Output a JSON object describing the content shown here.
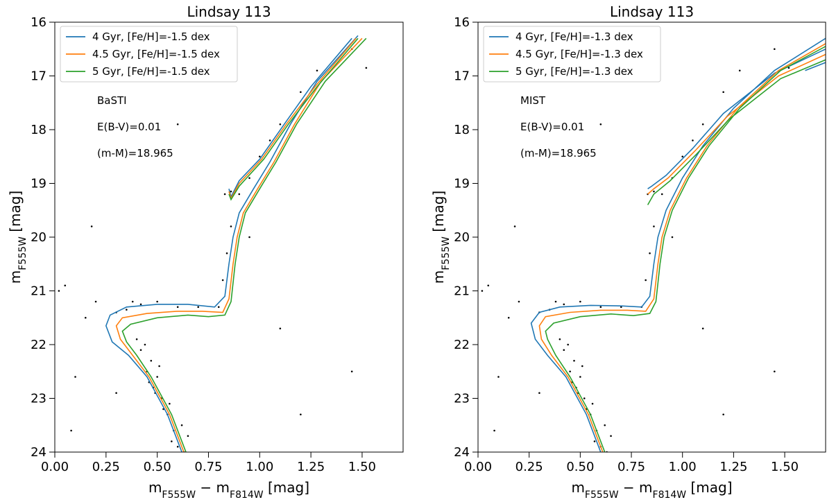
{
  "chart_data": [
    {
      "type": "scatter",
      "title": "Lindsay 113",
      "xlabel": [
        "m",
        "F555W",
        " − m",
        "F814W",
        " [mag]"
      ],
      "ylabel": [
        "m",
        "F555W",
        " [mag]"
      ],
      "xlim": [
        0,
        1.7
      ],
      "ylim": [
        24,
        16
      ],
      "xticks": [
        {
          "value": 0,
          "label": "0.00"
        },
        {
          "value": 0.25,
          "label": "0.25"
        },
        {
          "value": 0.5,
          "label": "0.50"
        },
        {
          "value": 0.75,
          "label": "0.75"
        },
        {
          "value": 1,
          "label": "1.00"
        },
        {
          "value": 1.25,
          "label": "1.25"
        },
        {
          "value": 1.5,
          "label": "1.50"
        }
      ],
      "yticks": [
        16,
        17,
        18,
        19,
        20,
        21,
        22,
        23,
        24
      ],
      "legend": "upper left",
      "annotations": [
        "BaSTI",
        "E(B-V)=0.01",
        "(m-M)=18.965"
      ],
      "points": {
        "color": "#000000",
        "x": [
          0.45,
          0.48,
          0.52,
          0.5,
          0.55,
          0.58,
          0.6,
          0.62,
          0.47,
          0.42,
          0.4,
          0.44,
          0.53,
          0.57,
          0.65,
          0.49,
          0.56,
          0.51,
          0.46,
          0.63,
          0.35,
          0.42,
          0.5,
          0.6,
          0.7,
          0.8,
          0.3,
          0.38,
          0.82,
          0.84,
          0.86,
          0.9,
          0.95,
          1.0,
          1.05,
          1.1,
          1.2,
          1.28,
          1.45,
          0.86,
          0.83,
          0.02,
          0.05,
          0.15,
          0.2,
          0.18,
          0.6,
          1.52,
          1.45,
          1.1,
          0.95,
          0.1,
          0.08,
          1.2,
          0.3
        ],
        "y": [
          22.5,
          22.8,
          23.0,
          22.6,
          23.3,
          23.6,
          23.9,
          23.5,
          22.3,
          22.1,
          21.9,
          22.0,
          23.2,
          23.8,
          23.7,
          22.9,
          23.1,
          22.4,
          22.7,
          24.0,
          21.35,
          21.25,
          21.2,
          21.3,
          21.3,
          21.3,
          21.4,
          21.2,
          20.8,
          20.3,
          19.8,
          19.2,
          18.9,
          18.5,
          18.2,
          17.9,
          17.3,
          16.9,
          16.5,
          19.15,
          19.2,
          21.0,
          20.9,
          21.5,
          21.2,
          19.8,
          17.9,
          16.85,
          22.5,
          21.7,
          20.0,
          22.6,
          23.6,
          23.3,
          22.9
        ]
      },
      "series": [
        {
          "name": "4 Gyr, [Fe/H]=-1.5 dex",
          "color": "#1f77b4",
          "x": [
            0.62,
            0.55,
            0.45,
            0.36,
            0.28,
            0.25,
            0.27,
            0.35,
            0.5,
            0.65,
            0.78,
            0.83,
            0.85,
            0.87,
            0.9,
            0.97,
            1.05,
            1.15,
            1.28,
            1.48,
            null,
            0.85,
            0.86,
            0.9,
            1.0,
            1.12,
            1.25,
            1.45
          ],
          "values": [
            24,
            23.3,
            22.6,
            22.2,
            21.95,
            21.65,
            21.45,
            21.3,
            21.25,
            21.25,
            21.3,
            21.1,
            20.5,
            20.0,
            19.55,
            19.1,
            18.6,
            17.9,
            17.1,
            16.25,
            null,
            19.1,
            19.25,
            18.95,
            18.55,
            17.9,
            17.2,
            16.3
          ]
        },
        {
          "name": "4.5 Gyr, [Fe/H]=-1.5 dex",
          "color": "#ff7f0e",
          "x": [
            0.63,
            0.56,
            0.46,
            0.38,
            0.32,
            0.3,
            0.33,
            0.45,
            0.6,
            0.72,
            0.82,
            0.85,
            0.87,
            0.89,
            0.92,
            0.99,
            1.07,
            1.17,
            1.3,
            1.5,
            null,
            0.85,
            0.86,
            0.9,
            1.01,
            1.13,
            1.27,
            1.47
          ],
          "values": [
            24,
            23.3,
            22.6,
            22.2,
            21.9,
            21.65,
            21.5,
            21.42,
            21.38,
            21.38,
            21.4,
            21.15,
            20.5,
            20.0,
            19.55,
            19.1,
            18.6,
            17.9,
            17.1,
            16.3,
            null,
            19.15,
            19.28,
            19.0,
            18.55,
            17.9,
            17.2,
            16.3
          ]
        },
        {
          "name": "5 Gyr, [Fe/H]=-1.5 dex",
          "color": "#2ca02c",
          "x": [
            0.64,
            0.57,
            0.47,
            0.4,
            0.35,
            0.33,
            0.37,
            0.5,
            0.65,
            0.75,
            0.83,
            0.86,
            0.88,
            0.9,
            0.93,
            1.0,
            1.08,
            1.18,
            1.32,
            1.52,
            null,
            0.85,
            0.86,
            0.9,
            1.02,
            1.14,
            1.28,
            1.48
          ],
          "values": [
            24,
            23.3,
            22.6,
            22.2,
            21.95,
            21.75,
            21.62,
            21.5,
            21.45,
            21.48,
            21.45,
            21.2,
            20.5,
            20.0,
            19.55,
            19.1,
            18.6,
            17.9,
            17.1,
            16.3,
            null,
            19.2,
            19.3,
            19.05,
            18.55,
            17.9,
            17.2,
            16.3
          ]
        }
      ]
    },
    {
      "type": "scatter",
      "title": "Lindsay 113",
      "xlabel": [
        "m",
        "F555W",
        " − m",
        "F814W",
        " [mag]"
      ],
      "ylabel": [
        "m",
        "F555W",
        " [mag]"
      ],
      "xlim": [
        0,
        1.7
      ],
      "ylim": [
        24,
        16
      ],
      "xticks": [
        {
          "value": 0,
          "label": "0.00"
        },
        {
          "value": 0.25,
          "label": "0.25"
        },
        {
          "value": 0.5,
          "label": "0.50"
        },
        {
          "value": 0.75,
          "label": "0.75"
        },
        {
          "value": 1,
          "label": "1.00"
        },
        {
          "value": 1.25,
          "label": "1.25"
        },
        {
          "value": 1.5,
          "label": "1.50"
        }
      ],
      "yticks": [
        16,
        17,
        18,
        19,
        20,
        21,
        22,
        23,
        24
      ],
      "legend": "upper left",
      "annotations": [
        "MIST",
        "E(B-V)=0.01",
        "(m-M)=18.965"
      ],
      "points": {
        "color": "#000000",
        "x": [
          0.45,
          0.48,
          0.52,
          0.5,
          0.55,
          0.58,
          0.6,
          0.62,
          0.47,
          0.42,
          0.4,
          0.44,
          0.53,
          0.57,
          0.65,
          0.49,
          0.56,
          0.51,
          0.46,
          0.63,
          0.35,
          0.42,
          0.5,
          0.6,
          0.7,
          0.8,
          0.3,
          0.38,
          0.82,
          0.84,
          0.86,
          0.9,
          0.95,
          1.0,
          1.05,
          1.1,
          1.2,
          1.28,
          1.45,
          0.86,
          0.83,
          0.02,
          0.05,
          0.15,
          0.2,
          0.18,
          0.6,
          1.52,
          1.45,
          1.1,
          0.95,
          0.1,
          0.08,
          1.2,
          0.3
        ],
        "y": [
          22.5,
          22.8,
          23.0,
          22.6,
          23.3,
          23.6,
          23.9,
          23.5,
          22.3,
          22.1,
          21.9,
          22.0,
          23.2,
          23.8,
          23.7,
          22.9,
          23.1,
          22.4,
          22.7,
          24.0,
          21.35,
          21.25,
          21.2,
          21.3,
          21.3,
          21.3,
          21.4,
          21.2,
          20.8,
          20.3,
          19.8,
          19.2,
          18.9,
          18.5,
          18.2,
          17.9,
          17.3,
          16.9,
          16.5,
          19.15,
          19.2,
          21.0,
          20.9,
          21.5,
          21.2,
          19.8,
          17.9,
          16.85,
          22.5,
          21.7,
          20.0,
          22.6,
          23.6,
          23.3,
          22.9
        ]
      },
      "series": [
        {
          "name": "4 Gyr, [Fe/H]=-1.3 dex",
          "color": "#1f77b4",
          "x": [
            0.6,
            0.53,
            0.43,
            0.34,
            0.28,
            0.26,
            0.3,
            0.4,
            0.55,
            0.7,
            0.8,
            0.84,
            0.86,
            0.88,
            0.92,
            1.0,
            1.1,
            1.25,
            1.45,
            1.7,
            null,
            0.83,
            0.85,
            0.92,
            1.05,
            1.2,
            1.45,
            1.7,
            null,
            1.6,
            1.7
          ],
          "values": [
            24,
            23.3,
            22.6,
            22.2,
            21.9,
            21.6,
            21.4,
            21.3,
            21.27,
            21.28,
            21.3,
            21.1,
            20.5,
            20.0,
            19.5,
            18.9,
            18.3,
            17.6,
            16.9,
            16.3,
            null,
            19.1,
            19.05,
            18.85,
            18.35,
            17.7,
            16.95,
            16.5,
            null,
            16.9,
            16.75
          ]
        },
        {
          "name": "4.5 Gyr, [Fe/H]=-1.3 dex",
          "color": "#ff7f0e",
          "x": [
            0.61,
            0.54,
            0.44,
            0.36,
            0.31,
            0.3,
            0.33,
            0.45,
            0.6,
            0.73,
            0.82,
            0.86,
            0.88,
            0.9,
            0.94,
            1.02,
            1.12,
            1.27,
            1.47,
            1.7,
            null,
            0.83,
            0.86,
            0.93,
            1.06,
            1.22,
            1.47,
            1.7
          ],
          "values": [
            24,
            23.3,
            22.6,
            22.2,
            21.9,
            21.65,
            21.48,
            21.4,
            21.36,
            21.36,
            21.38,
            21.15,
            20.5,
            20.0,
            19.5,
            18.9,
            18.3,
            17.6,
            16.9,
            16.4,
            null,
            19.2,
            19.1,
            18.9,
            18.4,
            17.75,
            17.0,
            16.6
          ]
        },
        {
          "name": "5 Gyr, [Fe/H]=-1.3 dex",
          "color": "#2ca02c",
          "x": [
            0.62,
            0.55,
            0.45,
            0.38,
            0.34,
            0.33,
            0.37,
            0.5,
            0.65,
            0.76,
            0.84,
            0.87,
            0.89,
            0.91,
            0.95,
            1.03,
            1.13,
            1.28,
            1.48,
            1.7,
            null,
            0.83,
            0.86,
            0.94,
            1.07,
            1.23,
            1.48,
            1.7
          ],
          "values": [
            24,
            23.3,
            22.6,
            22.2,
            21.9,
            21.75,
            21.6,
            21.48,
            21.43,
            21.46,
            21.42,
            21.2,
            20.5,
            20.0,
            19.5,
            18.9,
            18.3,
            17.6,
            16.9,
            16.45,
            null,
            19.4,
            19.2,
            18.95,
            18.45,
            17.8,
            17.05,
            16.7
          ]
        }
      ]
    }
  ]
}
